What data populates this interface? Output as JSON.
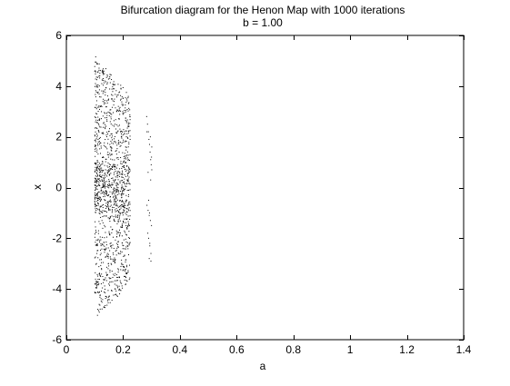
{
  "chart_data": {
    "type": "scatter",
    "title": "Bifurcation diagram for the Henon Map with 1000 iterations",
    "subtitle": "b = 1.00",
    "xlabel": "a",
    "ylabel": "x",
    "xlim": [
      0,
      1.4
    ],
    "ylim": [
      -6,
      6
    ],
    "xticks": [
      0,
      0.2,
      0.4,
      0.6,
      0.8,
      1,
      1.2,
      1.4
    ],
    "xtick_labels": [
      "0",
      "0.2",
      "0.4",
      "0.6",
      "0.8",
      "1",
      "1.2",
      "1.4"
    ],
    "yticks": [
      -6,
      -4,
      -2,
      0,
      2,
      4,
      6
    ],
    "ytick_labels": [
      "-6",
      "-4",
      "-2",
      "0",
      "2",
      "4",
      "6"
    ],
    "grid": false,
    "marker_color": "#000000",
    "point_clusters": [
      {
        "a_range": [
          0.1,
          0.225
        ],
        "x_envelope": [
          {
            "a": 0.1,
            "x_min": -5.2,
            "x_max": 5.3
          },
          {
            "a": 0.13,
            "x_min": -4.8,
            "x_max": 4.8
          },
          {
            "a": 0.16,
            "x_min": -4.5,
            "x_max": 4.5
          },
          {
            "a": 0.19,
            "x_min": -4.2,
            "x_max": 4.1
          },
          {
            "a": 0.225,
            "x_min": -3.6,
            "x_max": 3.6
          }
        ],
        "approx_point_count": 1400
      }
    ],
    "series": [
      {
        "x": [
          0.283,
          0.286,
          0.289,
          0.291,
          0.293,
          0.295,
          0.297,
          0.299,
          0.301,
          0.284,
          0.288,
          0.292,
          0.296,
          0.3,
          0.287,
          0.29,
          0.294,
          0.298,
          0.292,
          0.296,
          0.3,
          0.284,
          0.288,
          0.29,
          0.294,
          0.298,
          0.301,
          0.293,
          0.297
        ],
        "y": [
          2.8,
          2.5,
          2.2,
          1.9,
          1.7,
          1.4,
          1.1,
          0.9,
          0.7,
          -0.7,
          -0.9,
          -1.1,
          -1.3,
          -1.5,
          -1.8,
          -2.0,
          -2.3,
          -2.6,
          -2.8,
          2.0,
          1.2,
          2.2,
          0.6,
          -0.5,
          -2.2,
          -2.9,
          1.6,
          -1.0,
          0.3
        ]
      }
    ]
  }
}
